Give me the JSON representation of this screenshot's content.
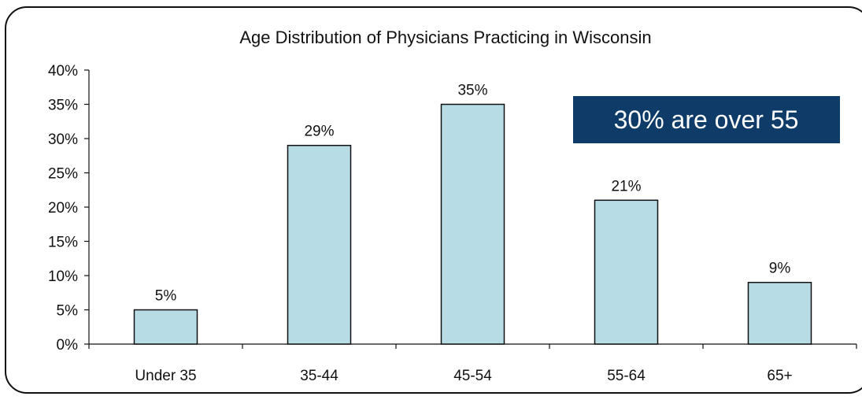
{
  "chart_data": {
    "type": "bar",
    "title": "Age Distribution of Physicians Practicing in Wisconsin",
    "categories": [
      "Under 35",
      "35-44",
      "45-54",
      "55-64",
      "65+"
    ],
    "values": [
      5,
      29,
      35,
      21,
      9
    ],
    "data_labels": [
      "5%",
      "29%",
      "35%",
      "21%",
      "9%"
    ],
    "ylim": [
      0,
      40
    ],
    "yticks": [
      0,
      5,
      10,
      15,
      20,
      25,
      30,
      35,
      40
    ],
    "ytick_labels": [
      "0%",
      "5%",
      "10%",
      "15%",
      "20%",
      "25%",
      "30%",
      "35%",
      "40%"
    ],
    "xlabel": "",
    "ylabel": "",
    "grid": false,
    "bar_color": "#b7dce6",
    "bar_edge_color": "#111111"
  },
  "callout": {
    "text": "30% are over 55",
    "background": "#0f3b68",
    "color": "#ffffff"
  }
}
